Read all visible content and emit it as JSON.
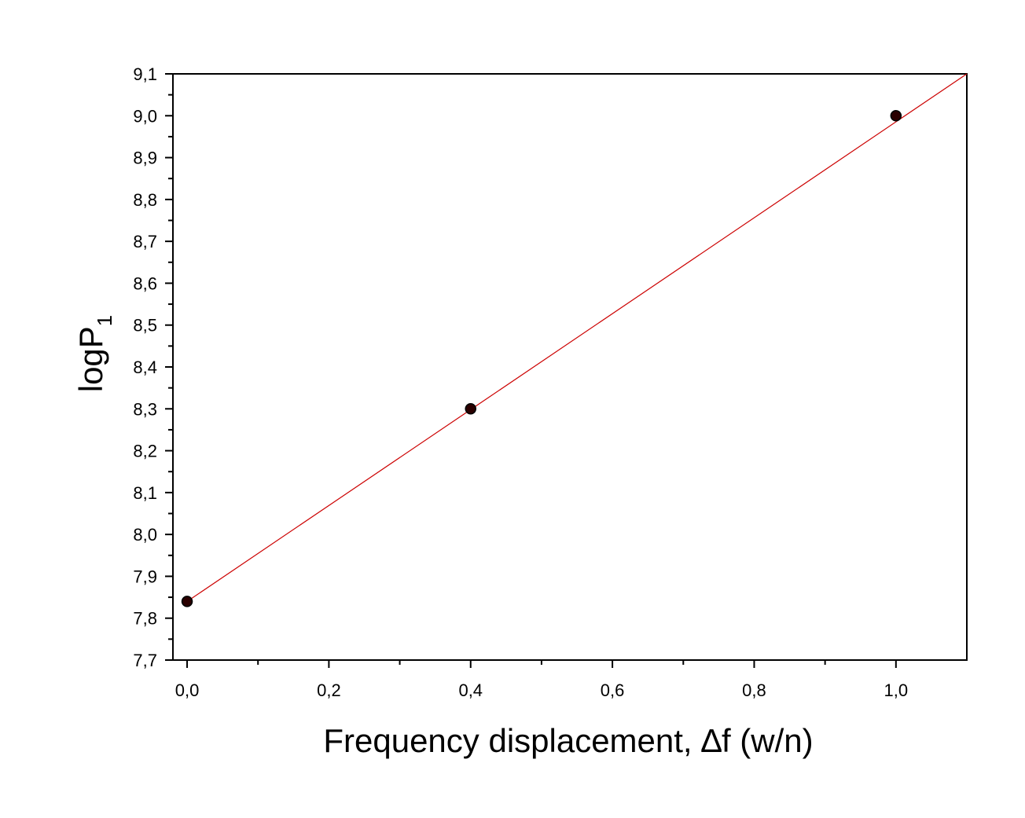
{
  "chart_data": {
    "type": "scatter",
    "xlabel": "Frequency displacement, ∆f (w/n)",
    "ylabel": "logP",
    "ylabel_subscript": "1",
    "xlim": [
      -0.02,
      1.1
    ],
    "ylim": [
      7.7,
      9.1
    ],
    "x_ticks": [
      0.0,
      0.2,
      0.4,
      0.6,
      0.8,
      1.0
    ],
    "x_tick_labels": [
      "0,0",
      "0,2",
      "0,4",
      "0,6",
      "0,8",
      "1,0"
    ],
    "x_minor_step": 0.1,
    "y_ticks": [
      7.7,
      7.8,
      7.9,
      8.0,
      8.1,
      8.2,
      8.3,
      8.4,
      8.5,
      8.6,
      8.7,
      8.8,
      8.9,
      9.0,
      9.1
    ],
    "y_tick_labels": [
      "7,7",
      "7,8",
      "7,9",
      "8,0",
      "8,1",
      "8,2",
      "8,3",
      "8,4",
      "8,5",
      "8,6",
      "8,7",
      "8,8",
      "8,9",
      "9,0",
      "9,1"
    ],
    "y_minor_step": 0.05,
    "grid": false,
    "series": [
      {
        "x": [
          0.0,
          0.4,
          1.0
        ],
        "y": [
          7.84,
          8.3,
          9.0
        ],
        "marker_color": "#000000",
        "marker_fill": "#2a0000"
      }
    ],
    "fit_line": {
      "x": [
        0.0,
        1.1
      ],
      "y": [
        7.84,
        9.1
      ],
      "color": "#cc0000"
    }
  }
}
